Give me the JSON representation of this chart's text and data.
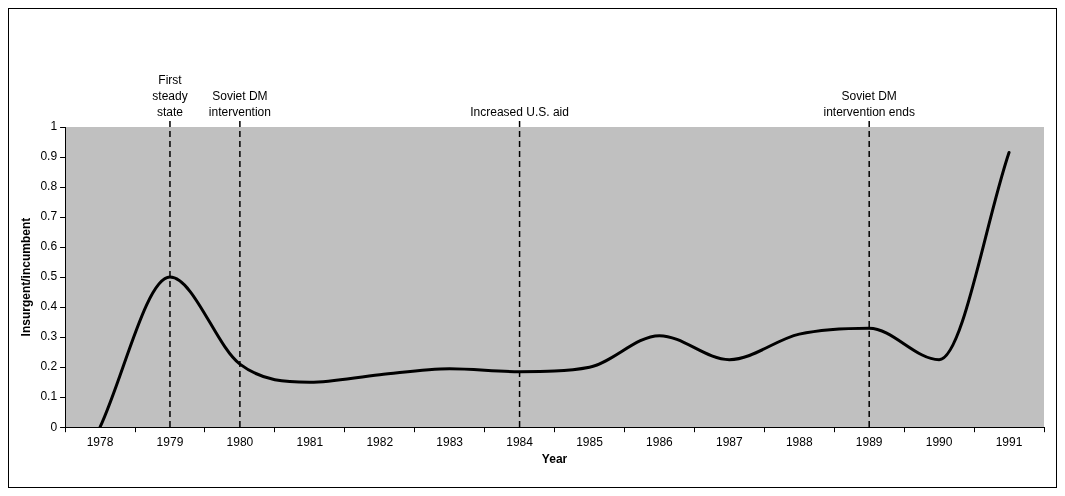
{
  "chart_data": {
    "type": "line",
    "xlabel": "Year",
    "ylabel": "Insurgent/incumbent",
    "categories": [
      "1978",
      "1979",
      "1980",
      "1981",
      "1982",
      "1983",
      "1984",
      "1985",
      "1986",
      "1987",
      "1988",
      "1989",
      "1990",
      "1991"
    ],
    "series": [
      {
        "color": "#000000",
        "values": [
          0,
          0.5,
          0.21,
          0.15,
          0.175,
          0.195,
          0.185,
          0.2,
          0.305,
          0.225,
          0.31,
          0.33,
          0.225,
          0.915
        ]
      }
    ],
    "ylim": [
      0,
      1
    ],
    "yticks": [
      0,
      0.1,
      0.2,
      0.3,
      0.4,
      0.5,
      0.6,
      0.7,
      0.8,
      0.9,
      1
    ],
    "grid": false,
    "legend": false,
    "marker": "none",
    "line_style": "solid",
    "ref_lines": [
      {
        "axis": "x",
        "value": "1979",
        "label": "First\nsteady\nstate",
        "color": "#000000",
        "line_style": "dashed"
      },
      {
        "axis": "x",
        "value": "1980",
        "label": "Soviet DM\nintervention",
        "color": "#000000",
        "line_style": "dashed"
      },
      {
        "axis": "x",
        "value": "1984",
        "label": "Increased U.S. aid",
        "color": "#000000",
        "line_style": "dashed"
      },
      {
        "axis": "x",
        "value": "1989",
        "label": "Soviet DM\nintervention ends",
        "color": "#000000",
        "line_style": "dashed"
      }
    ]
  }
}
